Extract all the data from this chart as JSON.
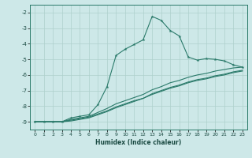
{
  "xlabel": "Humidex (Indice chaleur)",
  "bg_color": "#cde8e8",
  "line_color": "#2a7a6a",
  "grid_color": "#aed0cc",
  "xlim": [
    -0.5,
    23.5
  ],
  "ylim": [
    -9.5,
    -1.5
  ],
  "yticks": [
    -9,
    -8,
    -7,
    -6,
    -5,
    -4,
    -3,
    -2
  ],
  "xticks": [
    0,
    1,
    2,
    3,
    4,
    5,
    6,
    7,
    8,
    9,
    10,
    11,
    12,
    13,
    14,
    15,
    16,
    17,
    18,
    19,
    20,
    21,
    22,
    23
  ],
  "line1_x": [
    0,
    1,
    2,
    3,
    4,
    5,
    6,
    7,
    8,
    9,
    10,
    11,
    12,
    13,
    14,
    15,
    16,
    17,
    18,
    19,
    20,
    21,
    22,
    23
  ],
  "line1_y": [
    -9.0,
    -9.0,
    -9.0,
    -9.0,
    -8.75,
    -8.65,
    -8.55,
    -7.9,
    -6.75,
    -4.75,
    -4.35,
    -4.05,
    -3.75,
    -2.25,
    -2.5,
    -3.15,
    -3.5,
    -4.85,
    -5.05,
    -4.95,
    -5.0,
    -5.1,
    -5.35,
    -5.5
  ],
  "line2_x": [
    0,
    1,
    2,
    3,
    4,
    5,
    6,
    7,
    8,
    9,
    10,
    11,
    12,
    13,
    14,
    15,
    16,
    17,
    18,
    19,
    20,
    21,
    22,
    23
  ],
  "line2_y": [
    -9.0,
    -9.0,
    -9.0,
    -9.0,
    -8.85,
    -8.75,
    -8.65,
    -8.4,
    -8.15,
    -7.85,
    -7.65,
    -7.45,
    -7.25,
    -6.95,
    -6.75,
    -6.5,
    -6.35,
    -6.15,
    -6.0,
    -5.9,
    -5.75,
    -5.65,
    -5.55,
    -5.5
  ],
  "line3_x": [
    0,
    1,
    2,
    3,
    4,
    5,
    6,
    7,
    8,
    9,
    10,
    11,
    12,
    13,
    14,
    15,
    16,
    17,
    18,
    19,
    20,
    21,
    22,
    23
  ],
  "line3_y": [
    -9.0,
    -9.0,
    -9.0,
    -9.0,
    -8.9,
    -8.8,
    -8.7,
    -8.5,
    -8.3,
    -8.05,
    -7.85,
    -7.65,
    -7.5,
    -7.2,
    -7.0,
    -6.8,
    -6.65,
    -6.45,
    -6.3,
    -6.2,
    -6.05,
    -5.95,
    -5.8,
    -5.7
  ],
  "line4_x": [
    0,
    1,
    2,
    3,
    4,
    5,
    6,
    7,
    8,
    9,
    10,
    11,
    12,
    13,
    14,
    15,
    16,
    17,
    18,
    19,
    20,
    21,
    22,
    23
  ],
  "line4_y": [
    -9.0,
    -9.0,
    -9.0,
    -9.0,
    -8.95,
    -8.85,
    -8.75,
    -8.55,
    -8.35,
    -8.1,
    -7.9,
    -7.7,
    -7.5,
    -7.25,
    -7.05,
    -6.85,
    -6.7,
    -6.5,
    -6.35,
    -6.25,
    -6.1,
    -6.0,
    -5.85,
    -5.75
  ]
}
